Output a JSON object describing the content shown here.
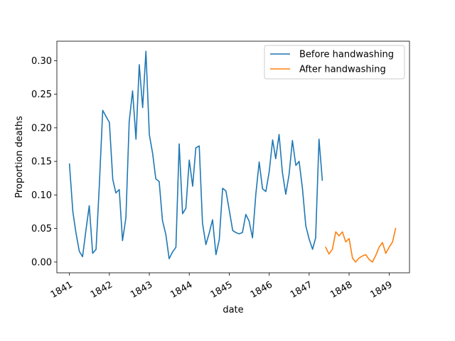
{
  "chart_data": {
    "type": "line",
    "title": "",
    "xlabel": "date",
    "ylabel": "Proportion deaths",
    "xlim": [
      "1840-09-08",
      "1849-07-06"
    ],
    "ylim": [
      -0.016,
      0.329
    ],
    "x_ticks": [
      "1841",
      "1842",
      "1843",
      "1844",
      "1845",
      "1846",
      "1847",
      "1848",
      "1849"
    ],
    "y_ticks": [
      "0.00",
      "0.05",
      "0.10",
      "0.15",
      "0.20",
      "0.25",
      "0.30"
    ],
    "legend": {
      "placement": "top-right"
    },
    "series": [
      {
        "name": "Before handwashing",
        "color": "#1f77b4",
        "x": [
          "1841-01-01",
          "1841-02-01",
          "1841-03-01",
          "1841-04-01",
          "1841-05-01",
          "1841-06-01",
          "1841-07-01",
          "1841-08-01",
          "1841-09-01",
          "1841-10-01",
          "1841-11-01",
          "1841-12-01",
          "1842-01-01",
          "1842-02-01",
          "1842-03-01",
          "1842-04-01",
          "1842-05-01",
          "1842-06-01",
          "1842-07-01",
          "1842-08-01",
          "1842-09-01",
          "1842-10-01",
          "1842-11-01",
          "1842-12-01",
          "1843-01-01",
          "1843-02-01",
          "1843-03-01",
          "1843-04-01",
          "1843-05-01",
          "1843-06-01",
          "1843-07-01",
          "1843-08-01",
          "1843-09-01",
          "1843-10-01",
          "1843-11-01",
          "1843-12-01",
          "1844-01-01",
          "1844-02-01",
          "1844-03-01",
          "1844-04-01",
          "1844-05-01",
          "1844-06-01",
          "1844-07-01",
          "1844-08-01",
          "1844-09-01",
          "1844-10-01",
          "1844-11-01",
          "1844-12-01",
          "1845-01-01",
          "1845-02-01",
          "1845-03-01",
          "1845-04-01",
          "1845-05-01",
          "1845-06-01",
          "1845-07-01",
          "1845-08-01",
          "1845-09-01",
          "1845-10-01",
          "1845-11-01",
          "1845-12-01",
          "1846-01-01",
          "1846-02-01",
          "1846-03-01",
          "1846-04-01",
          "1846-05-01",
          "1846-06-01",
          "1846-07-01",
          "1846-08-01",
          "1846-09-01",
          "1846-10-01",
          "1846-11-01",
          "1846-12-01",
          "1847-01-01",
          "1847-02-01",
          "1847-03-01",
          "1847-04-01",
          "1847-05-01"
        ],
        "y": [
          0.146,
          0.075,
          0.044,
          0.016,
          0.008,
          0.048,
          0.084,
          0.013,
          0.019,
          0.114,
          0.226,
          0.217,
          0.208,
          0.123,
          0.103,
          0.108,
          0.032,
          0.066,
          0.209,
          0.255,
          0.183,
          0.294,
          0.23,
          0.314,
          0.19,
          0.161,
          0.124,
          0.12,
          0.062,
          0.041,
          0.005,
          0.015,
          0.022,
          0.176,
          0.072,
          0.08,
          0.152,
          0.113,
          0.17,
          0.173,
          0.058,
          0.026,
          0.043,
          0.063,
          0.011,
          0.033,
          0.11,
          0.106,
          0.077,
          0.047,
          0.044,
          0.042,
          0.044,
          0.071,
          0.061,
          0.036,
          0.102,
          0.149,
          0.109,
          0.105,
          0.135,
          0.182,
          0.154,
          0.19,
          0.134,
          0.101,
          0.13,
          0.181,
          0.144,
          0.15,
          0.109,
          0.054,
          0.034,
          0.019,
          0.036,
          0.183,
          0.122
        ]
      },
      {
        "name": "After handwashing",
        "color": "#ff7f0e",
        "x": [
          "1847-06-01",
          "1847-07-01",
          "1847-08-01",
          "1847-09-01",
          "1847-10-01",
          "1847-11-01",
          "1847-12-01",
          "1848-01-01",
          "1848-02-01",
          "1848-03-01",
          "1848-04-01",
          "1848-05-01",
          "1848-06-01",
          "1848-07-01",
          "1848-08-01",
          "1848-09-01",
          "1848-10-01",
          "1848-11-01",
          "1848-12-01",
          "1849-01-01",
          "1849-02-01",
          "1849-03-01"
        ],
        "y": [
          0.022,
          0.012,
          0.019,
          0.045,
          0.039,
          0.045,
          0.03,
          0.035,
          0.006,
          0.0,
          0.006,
          0.009,
          0.011,
          0.004,
          0.0,
          0.01,
          0.022,
          0.029,
          0.013,
          0.022,
          0.03,
          0.05
        ]
      }
    ]
  }
}
